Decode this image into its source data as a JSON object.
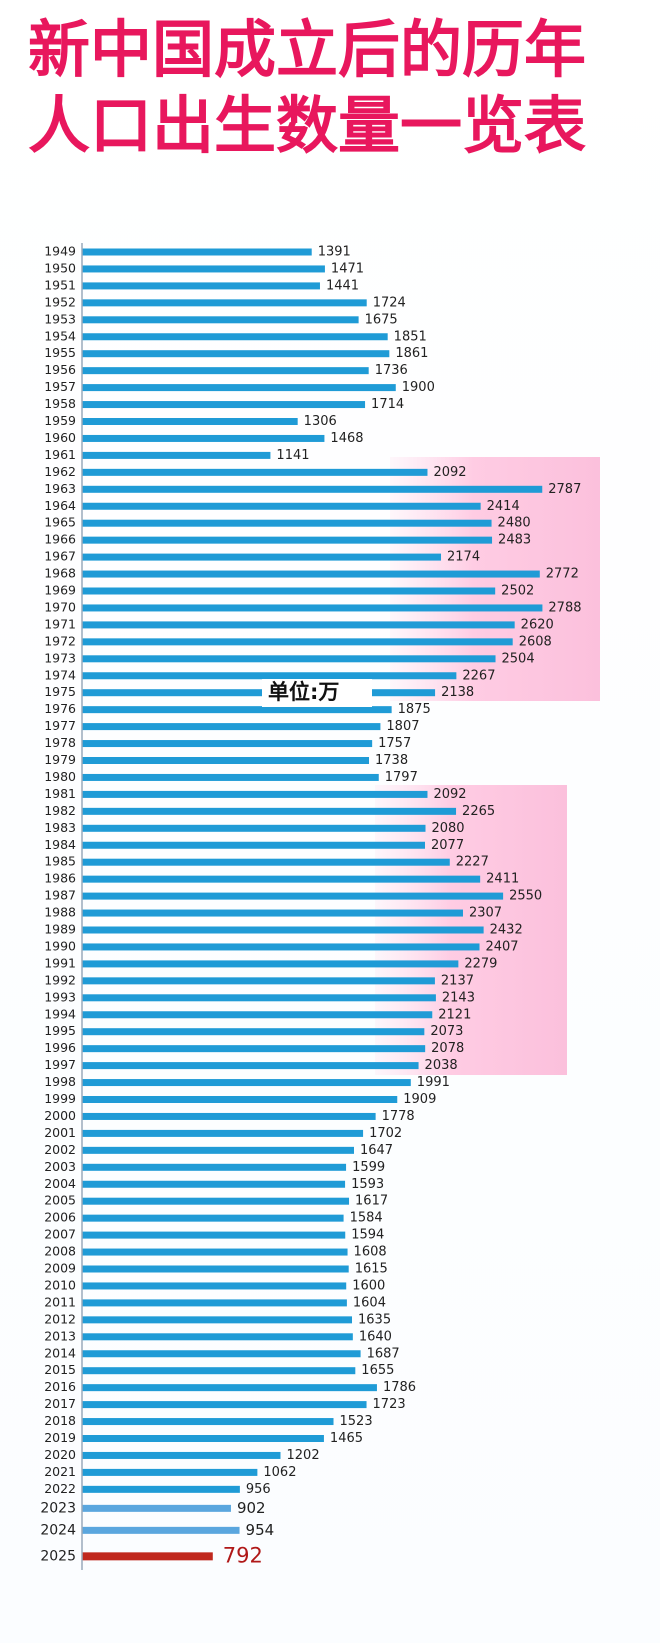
{
  "chart_data": {
    "type": "barh",
    "title": "新中国成立后的历年人口出生数量一览表",
    "unit_label": "单位:万",
    "color": "#1f9bd6",
    "special_colors": {
      "2023": "#5aa6de",
      "2024": "#5aa6de",
      "2025": "#c0281e"
    },
    "xlim": [
      0,
      3500
    ],
    "categories": [
      "1949",
      "1950",
      "1951",
      "1952",
      "1953",
      "1954",
      "1955",
      "1956",
      "1957",
      "1958",
      "1959",
      "1960",
      "1961",
      "1962",
      "1963",
      "1964",
      "1965",
      "1966",
      "1967",
      "1968",
      "1969",
      "1970",
      "1971",
      "1972",
      "1973",
      "1974",
      "1975",
      "1976",
      "1977",
      "1978",
      "1979",
      "1980",
      "1981",
      "1982",
      "1983",
      "1984",
      "1985",
      "1986",
      "1987",
      "1988",
      "1989",
      "1990",
      "1991",
      "1992",
      "1993",
      "1994",
      "1995",
      "1996",
      "1997",
      "1998",
      "1999",
      "2000",
      "2001",
      "2002",
      "2003",
      "2004",
      "2005",
      "2006",
      "2007",
      "2008",
      "2009",
      "2010",
      "2011",
      "2012",
      "2013",
      "2014",
      "2015",
      "2016",
      "2017",
      "2018",
      "2019",
      "2020",
      "2021",
      "2022",
      "2023",
      "2024",
      "2025"
    ],
    "values": [
      1391,
      1471,
      1441,
      1724,
      1675,
      1851,
      1861,
      1736,
      1900,
      1714,
      1306,
      1468,
      1141,
      2092,
      2787,
      2414,
      2480,
      2483,
      2174,
      2772,
      2502,
      2788,
      2620,
      2608,
      2504,
      2267,
      2138,
      1875,
      1807,
      1757,
      1738,
      1797,
      2092,
      2265,
      2080,
      2077,
      2227,
      2411,
      2550,
      2307,
      2432,
      2407,
      2279,
      2137,
      2143,
      2121,
      2073,
      2078,
      2038,
      1991,
      1909,
      1778,
      1702,
      1647,
      1599,
      1593,
      1617,
      1584,
      1594,
      1608,
      1615,
      1600,
      1604,
      1635,
      1640,
      1687,
      1655,
      1786,
      1723,
      1523,
      1465,
      1202,
      1062,
      956,
      902,
      954,
      792
    ]
  }
}
